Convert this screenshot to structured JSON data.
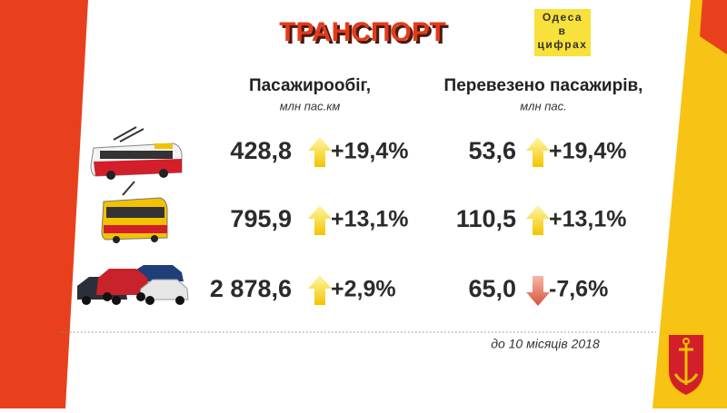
{
  "header": {
    "title": "ТРАНСПОРТ",
    "logo": [
      "Одеса",
      "в",
      "цифрах"
    ]
  },
  "columns": [
    {
      "title": "Пасажирообіг,",
      "unit": "млн пас.км"
    },
    {
      "title": "Перевезено пасажирів,",
      "unit": "млн пас."
    }
  ],
  "rows": [
    {
      "turnover": "428,8",
      "turnover_change": "+19,4%",
      "passengers": "53,6",
      "passengers_change": "+19,4%"
    },
    {
      "turnover": "795,9",
      "turnover_change": "+13,1%",
      "passengers": "110,5",
      "passengers_change": "+13,1%"
    },
    {
      "turnover": "2 878,6",
      "turnover_change": "+2,9%",
      "passengers": "65,0",
      "passengers_change": "-7,6%"
    }
  ],
  "footer": "до 10 місяців 2018"
}
